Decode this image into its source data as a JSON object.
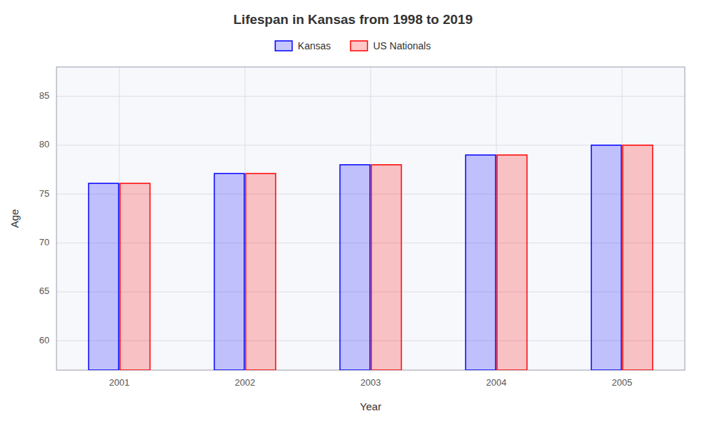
{
  "chart_data": {
    "type": "bar",
    "title": "Lifespan in Kansas from 1998 to 2019",
    "x_label": "Year",
    "y_label": "Age",
    "categories": [
      "2001",
      "2002",
      "2003",
      "2004",
      "2005"
    ],
    "series": [
      {
        "name": "Kansas",
        "color": "#0000ff",
        "values": [
          76.1,
          77.1,
          78.0,
          79.0,
          80.0
        ]
      },
      {
        "name": "US Nationals",
        "color": "#ff0000",
        "values": [
          76.1,
          77.1,
          78.0,
          79.0,
          80.0
        ]
      }
    ],
    "ylim": [
      57,
      88
    ],
    "yticks": [
      60,
      65,
      70,
      75,
      80,
      85
    ],
    "grid": true,
    "legend": "top"
  }
}
